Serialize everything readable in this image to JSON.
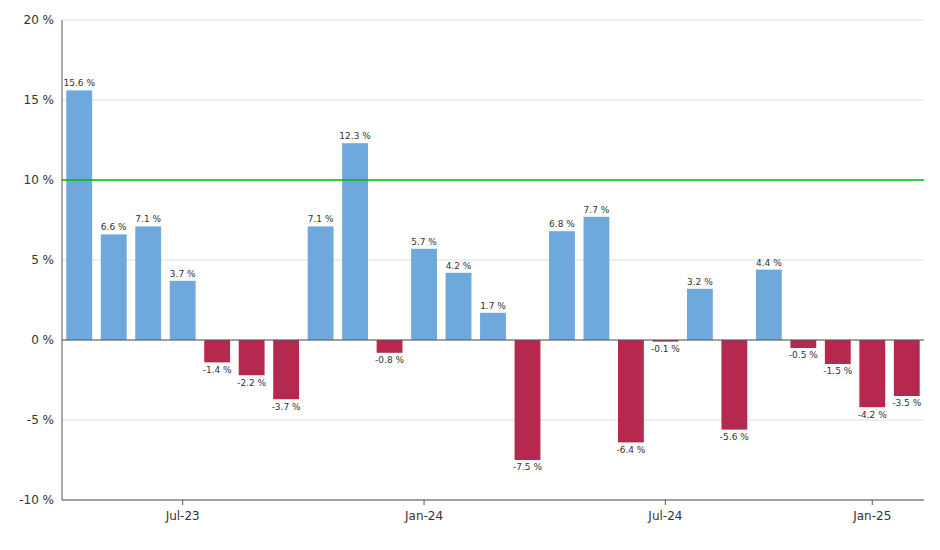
{
  "chart_data": {
    "type": "bar",
    "categories": [
      null,
      null,
      null,
      "Jul-23",
      null,
      null,
      null,
      null,
      null,
      null,
      "Jan-24",
      null,
      null,
      null,
      null,
      null,
      null,
      "Jul-24",
      null,
      null,
      null,
      null,
      null,
      "Jan-25",
      null
    ],
    "values": [
      15.6,
      6.6,
      7.1,
      3.7,
      -1.4,
      -2.2,
      -3.7,
      7.1,
      12.3,
      -0.8,
      5.7,
      4.2,
      1.7,
      -7.5,
      6.8,
      7.7,
      -6.4,
      -0.1,
      3.2,
      -5.6,
      4.4,
      -0.5,
      -1.5,
      -4.2,
      -3.5
    ],
    "value_labels": [
      "15.6 %",
      "6.6 %",
      "7.1 %",
      "3.7 %",
      "-1.4 %",
      "-2.2 %",
      "-3.7 %",
      "7.1 %",
      "12.3 %",
      "-0.8 %",
      "5.7 %",
      "4.2 %",
      "1.7 %",
      "-7.5 %",
      "6.8 %",
      "7.7 %",
      "-6.4 %",
      "-0.1 %",
      "3.2 %",
      "-5.6 %",
      "4.4 %",
      "-0.5 %",
      "-1.5 %",
      "-4.2 %",
      "-3.5 %"
    ],
    "colors": [
      "#6fa8dc",
      "#6fa8dc",
      "#6fa8dc",
      "#6fa8dc",
      "#b5294e",
      "#b5294e",
      "#b5294e",
      "#6fa8dc",
      "#6fa8dc",
      "#b5294e",
      "#6fa8dc",
      "#6fa8dc",
      "#6fa8dc",
      "#b5294e",
      "#6fa8dc",
      "#6fa8dc",
      "#b5294e",
      "#b5294e",
      "#6fa8dc",
      "#b5294e",
      "#6fa8dc",
      "#b5294e",
      "#b5294e",
      "#b5294e",
      "#b5294e"
    ],
    "ylim": [
      -10,
      20
    ],
    "yticks": [
      {
        "value": -10,
        "label": "-10 %"
      },
      {
        "value": -5,
        "label": "-5 %"
      },
      {
        "value": 0,
        "label": "0 %"
      },
      {
        "value": 5,
        "label": "5 %"
      },
      {
        "value": 10,
        "label": "10 %"
      },
      {
        "value": 15,
        "label": "15 %"
      },
      {
        "value": 20,
        "label": "20 %"
      }
    ],
    "reference_line": {
      "value": 10,
      "color": "#00bb00"
    },
    "grid": true,
    "data_labels": true
  }
}
